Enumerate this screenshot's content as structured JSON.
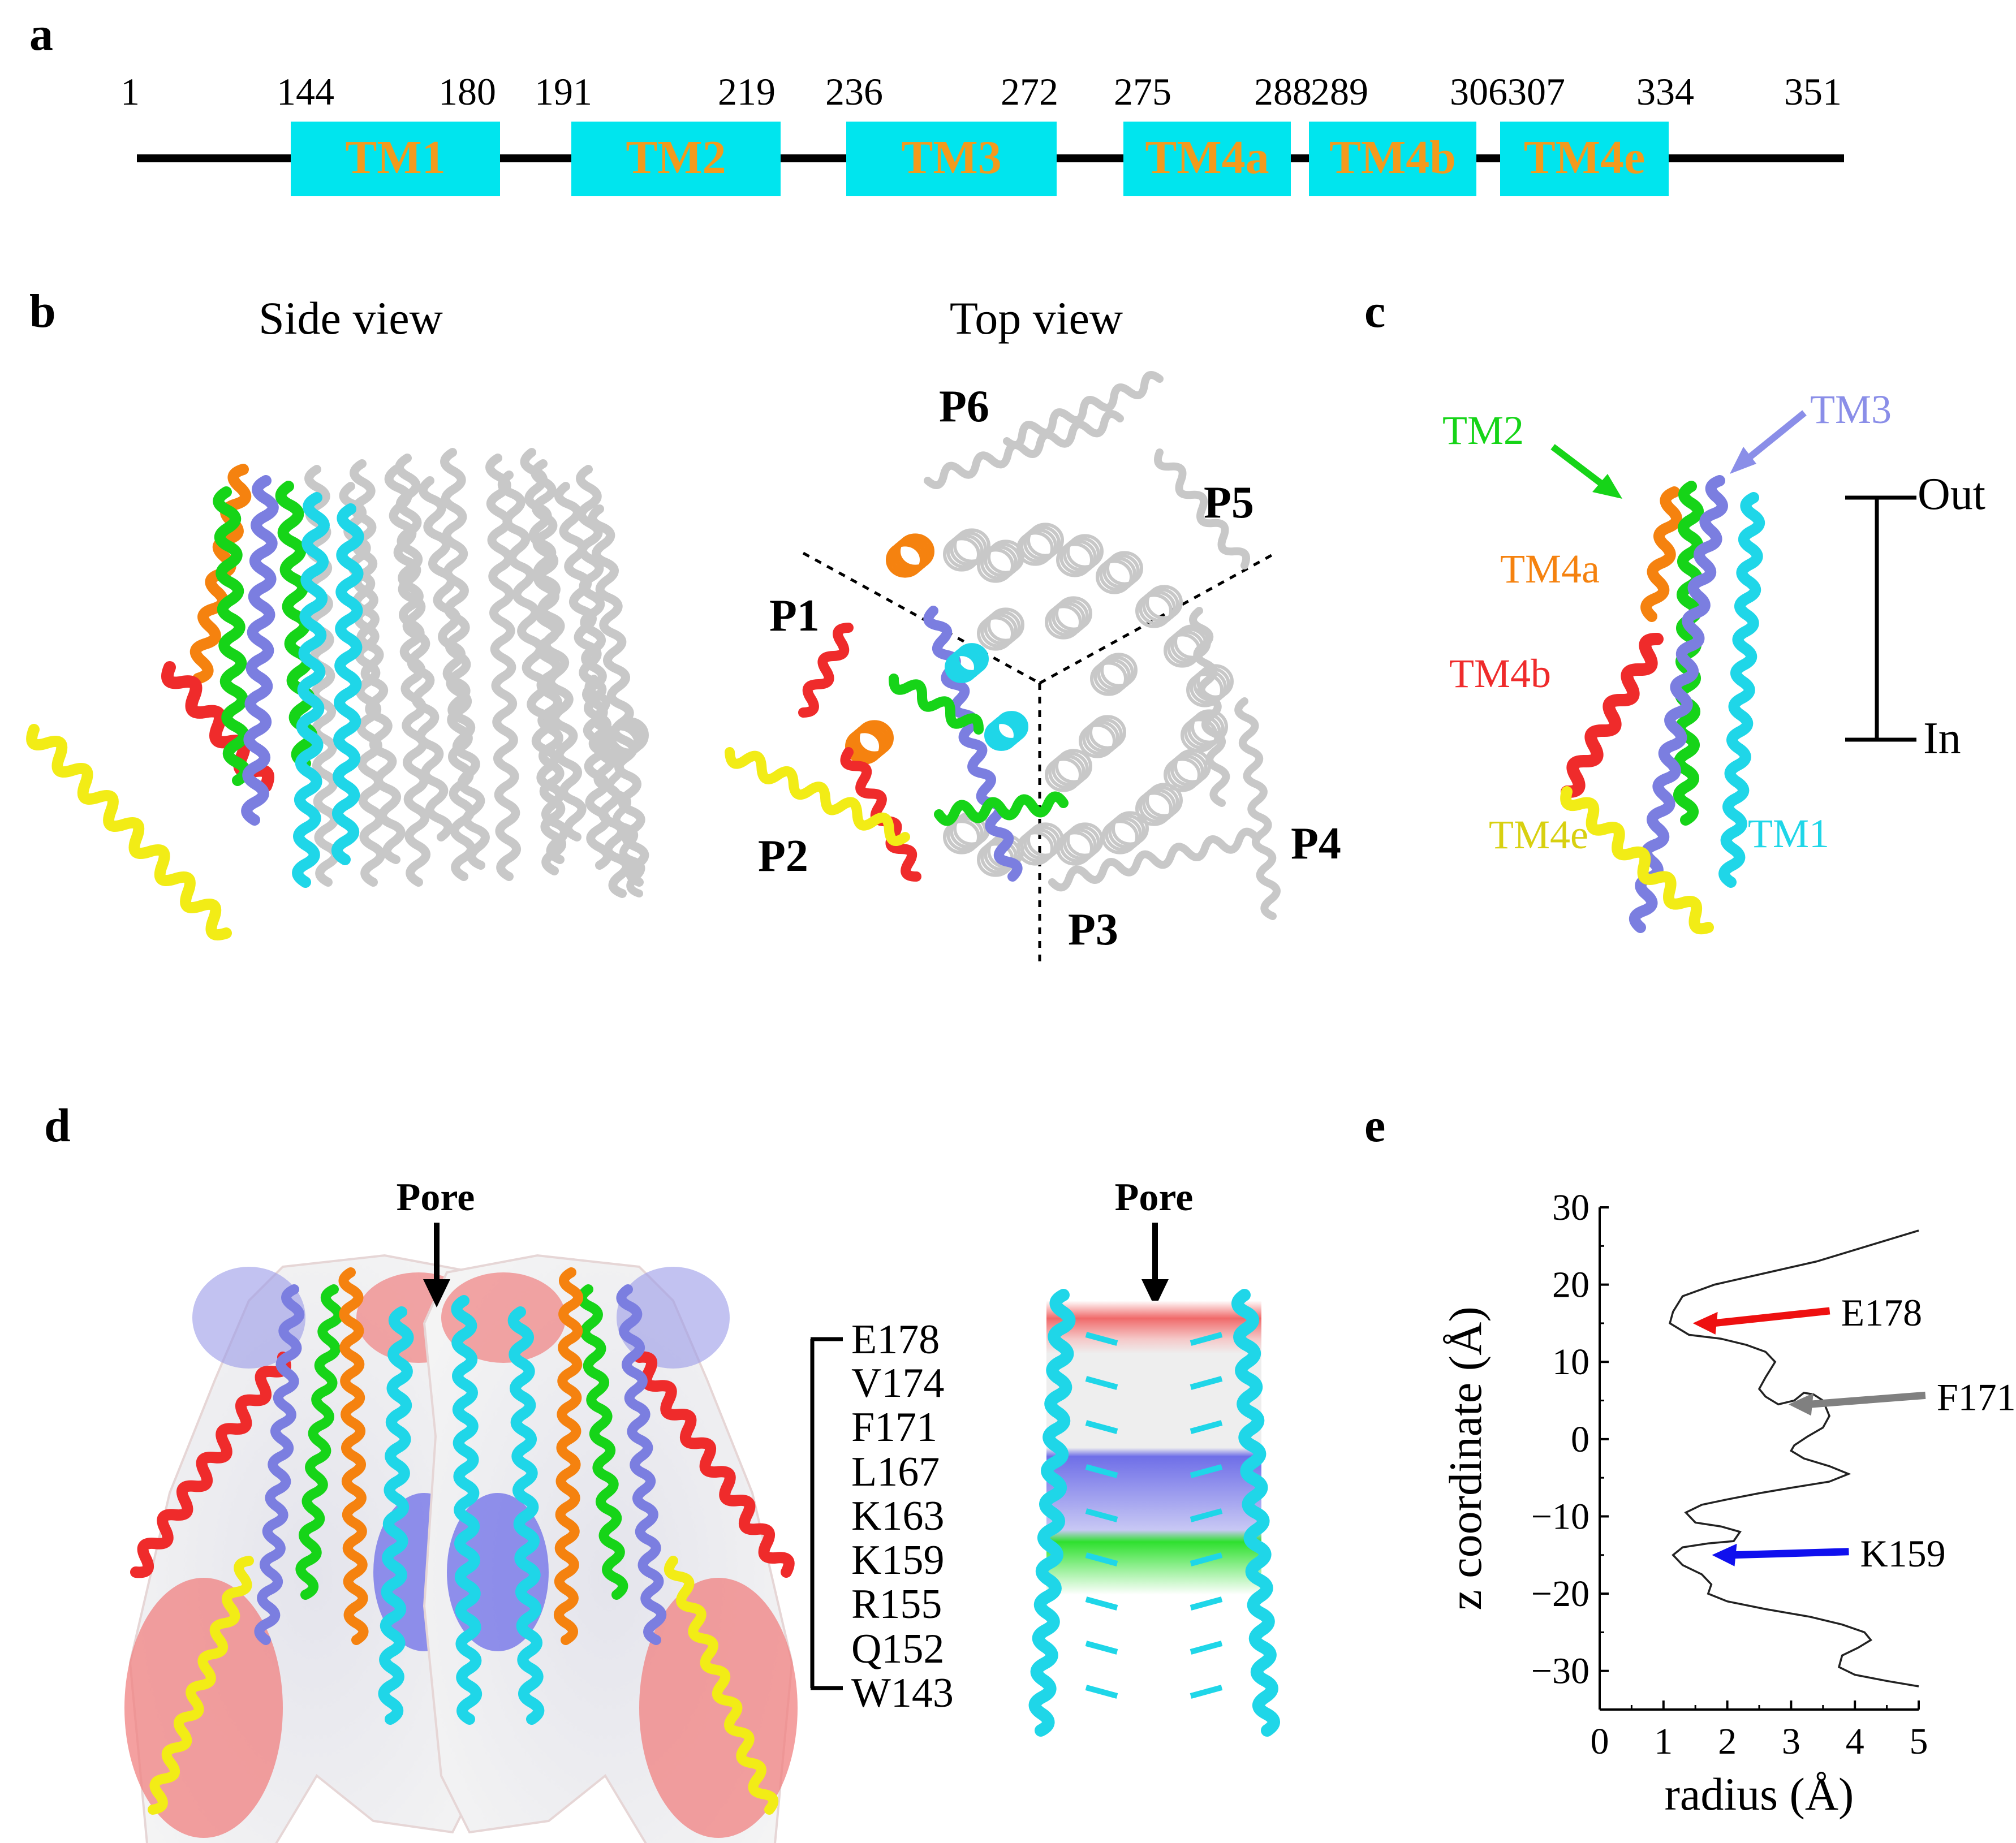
{
  "panels": {
    "a": "a",
    "b": "b",
    "c": "c",
    "d": "d",
    "e": "e"
  },
  "topology": {
    "numbers": [
      "1",
      "144",
      "180",
      "191",
      "219",
      "236",
      "272",
      "275",
      "288",
      "289",
      "306",
      "307",
      "334",
      "351"
    ],
    "segments": [
      "TM1",
      "TM2",
      "TM3",
      "TM4a",
      "TM4b",
      "TM4e"
    ],
    "colors": {
      "box": "#00e5ee",
      "label": "#f39a1d",
      "line": "#000000"
    }
  },
  "panel_b": {
    "side_title": "Side view",
    "top_title": "Top view",
    "protomers": [
      "P1",
      "P2",
      "P3",
      "P4",
      "P5",
      "P6"
    ]
  },
  "panel_c": {
    "labels": {
      "tm2": "TM2",
      "tm3": "TM3",
      "tm4a": "TM4a",
      "tm4b": "TM4b",
      "tm4e": "TM4e",
      "tm1": "TM1"
    },
    "membrane": {
      "out": "Out",
      "in": "In"
    }
  },
  "colors": {
    "TM1": "#1fd6e8",
    "TM2": "#16d418",
    "TM3": "#7b7ee0",
    "TM4a": "#f5820f",
    "TM4b": "#ef2b2b",
    "TM4e": "#f2ec16",
    "grey": "#c8c8c8"
  },
  "panel_d": {
    "pore_left": "Pore",
    "pore_right": "Pore",
    "residues": [
      "E178",
      "V174",
      "F171",
      "L167",
      "K163",
      "K159",
      "R155",
      "Q152",
      "W143"
    ]
  },
  "chart_data": {
    "type": "line",
    "xlabel": "radius (Å)",
    "ylabel": "z coordinate (Å)",
    "xlim": [
      0,
      5
    ],
    "ylim": [
      -35,
      30
    ],
    "xticks": [
      "0",
      "1",
      "2",
      "3",
      "4",
      "5"
    ],
    "yticks": [
      "30",
      "20",
      "10",
      "0",
      "−10",
      "−20",
      "−30"
    ],
    "series": [
      {
        "points": [
          [
            5.0,
            27
          ],
          [
            4.2,
            25
          ],
          [
            3.4,
            23
          ],
          [
            2.6,
            21.5
          ],
          [
            1.8,
            20
          ],
          [
            1.3,
            18.5
          ],
          [
            1.15,
            16.5
          ],
          [
            1.1,
            15
          ],
          [
            1.4,
            13.5
          ],
          [
            1.9,
            13
          ],
          [
            2.3,
            12.2
          ],
          [
            2.6,
            11.3
          ],
          [
            2.75,
            10
          ],
          [
            2.6,
            8
          ],
          [
            2.5,
            6.5
          ],
          [
            2.6,
            5.5
          ],
          [
            2.8,
            4.5
          ],
          [
            3.05,
            5
          ],
          [
            3.2,
            6
          ],
          [
            3.35,
            5.8
          ],
          [
            3.5,
            5
          ],
          [
            3.6,
            3
          ],
          [
            3.5,
            1.5
          ],
          [
            3.25,
            0.3
          ],
          [
            3.05,
            -0.8
          ],
          [
            3.0,
            -1.5
          ],
          [
            3.2,
            -2.5
          ],
          [
            3.6,
            -3.5
          ],
          [
            3.9,
            -4.5
          ],
          [
            3.6,
            -5.5
          ],
          [
            3.0,
            -6.3
          ],
          [
            2.5,
            -7
          ],
          [
            2.0,
            -7.8
          ],
          [
            1.6,
            -8.5
          ],
          [
            1.35,
            -9.5
          ],
          [
            1.5,
            -10.8
          ],
          [
            1.9,
            -11.3
          ],
          [
            2.2,
            -12
          ],
          [
            2.1,
            -13.2
          ],
          [
            1.7,
            -13.5
          ],
          [
            1.3,
            -14
          ],
          [
            1.15,
            -15
          ],
          [
            1.3,
            -16.3
          ],
          [
            1.6,
            -17.5
          ],
          [
            1.75,
            -18.8
          ],
          [
            1.7,
            -20
          ],
          [
            2.0,
            -21
          ],
          [
            2.6,
            -22
          ],
          [
            3.3,
            -23
          ],
          [
            3.8,
            -24
          ],
          [
            4.15,
            -25
          ],
          [
            4.25,
            -26
          ],
          [
            4.05,
            -27
          ],
          [
            3.8,
            -28
          ],
          [
            3.75,
            -29.5
          ],
          [
            4.0,
            -30.5
          ],
          [
            4.5,
            -31.3
          ],
          [
            5.0,
            -32
          ]
        ]
      }
    ],
    "annotations": [
      {
        "label": "E178",
        "x": 1.3,
        "y": 15,
        "color": "#ee1010"
      },
      {
        "label": "F171",
        "x": 2.8,
        "y": 4.5,
        "color": "#808080"
      },
      {
        "label": "K159",
        "x": 1.6,
        "y": -15,
        "color": "#1010ee"
      }
    ]
  }
}
